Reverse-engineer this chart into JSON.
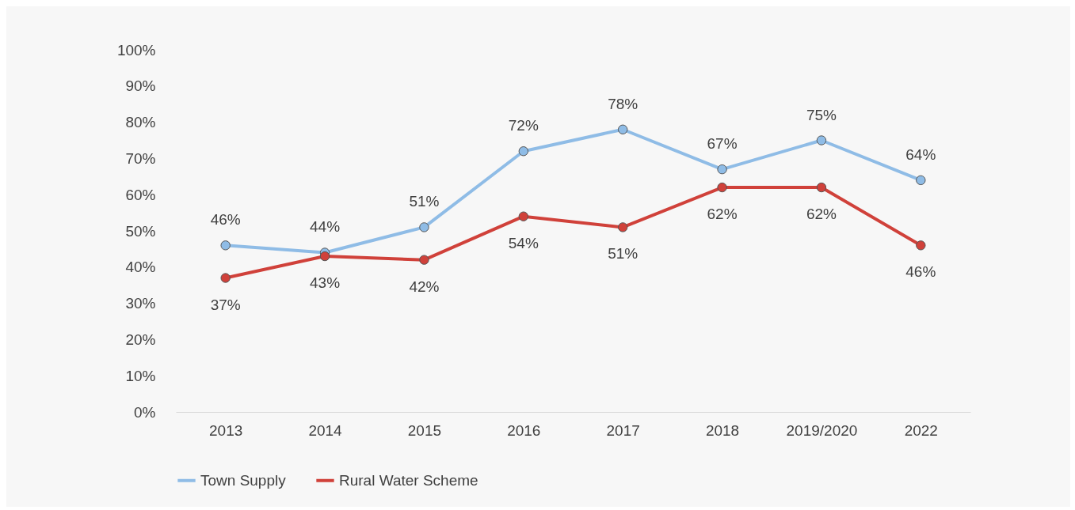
{
  "chart_data": {
    "type": "line",
    "categories": [
      "2013",
      "2014",
      "2015",
      "2016",
      "2017",
      "2018",
      "2019/2020",
      "2022"
    ],
    "series": [
      {
        "name": "Town Supply",
        "color": "#8fbce6",
        "values": [
          46,
          44,
          51,
          72,
          78,
          67,
          75,
          64
        ],
        "value_labels": [
          "46%",
          "44%",
          "51%",
          "72%",
          "78%",
          "67%",
          "75%",
          "64%"
        ]
      },
      {
        "name": "Rural Water Scheme",
        "color": "#d0413a",
        "values": [
          37,
          43,
          42,
          54,
          51,
          62,
          62,
          46
        ],
        "value_labels": [
          "37%",
          "43%",
          "42%",
          "54%",
          "51%",
          "62%",
          "62%",
          "46%"
        ]
      }
    ],
    "ylim": [
      0,
      100
    ],
    "yticks": [
      {
        "value": 0,
        "label": "0%"
      },
      {
        "value": 10,
        "label": "10%"
      },
      {
        "value": 20,
        "label": "20%"
      },
      {
        "value": 30,
        "label": "30%"
      },
      {
        "value": 40,
        "label": "40%"
      },
      {
        "value": 50,
        "label": "50%"
      },
      {
        "value": 60,
        "label": "60%"
      },
      {
        "value": 70,
        "label": "70%"
      },
      {
        "value": 80,
        "label": "80%"
      },
      {
        "value": 90,
        "label": "90%"
      },
      {
        "value": 100,
        "label": "100%"
      }
    ],
    "grid": false,
    "legend": "bottom",
    "marker": "circle",
    "line_style": "solid"
  }
}
